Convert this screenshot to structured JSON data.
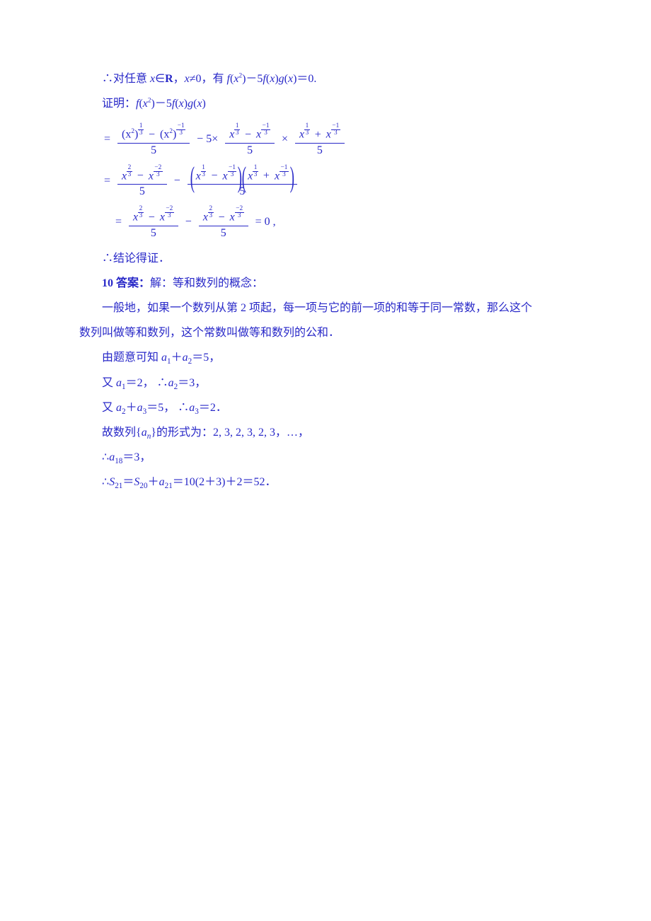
{
  "color_text": "#2828c8",
  "background_color": "#ffffff",
  "body_font": "SimSun",
  "math_font": "Times New Roman",
  "font_size_pt": 12,
  "line1": "∴对任意 ",
  "line1_m1": "x",
  "line1_a": "∈",
  "line1_m2": "R",
  "line1_b": "，",
  "line1_m3": "x",
  "line1_c": "≠0，有 ",
  "line1_m4": "f",
  "line1_d": "(",
  "line1_m5": "x",
  "line1_sup2": "2",
  "line1_e": ")－5",
  "line1_m6": "f",
  "line1_f": "(",
  "line1_m7": "x",
  "line1_g": ")",
  "line1_m8": "g",
  "line1_h": "(",
  "line1_m9": "x",
  "line1_i": ")＝0.",
  "line2": "证明：",
  "line2_m1": "f",
  "line2_a": "(",
  "line2_m2": "x",
  "line2_sup2": "2",
  "line2_b": ")－5",
  "line2_m3": "f",
  "line2_c": "(",
  "line2_m4": "x",
  "line2_d": ")",
  "line2_m5": "g",
  "line2_e": "(",
  "line2_m6": "x",
  "line2_f": ")",
  "eq1_eq": "=",
  "eq1_num_a": "(x",
  "eq1_num_sup2a": "2",
  "eq1_num_b": ")",
  "eq1_exp_13": "1",
  "eq1_exp_13d": "3",
  "eq1_minus": "−",
  "eq1_num_c": "(x",
  "eq1_num_sup2b": "2",
  "eq1_num_d": ")",
  "eq1_exp_n13n": "1",
  "eq1_exp_n13d": "3",
  "eq1_den": "5",
  "eq1_mid": " − 5×",
  "eq1_r1_num_x1": "x",
  "eq1_r1_minus": " − ",
  "eq1_r1_num_x2": "x",
  "eq1_r1_den": "5",
  "eq1_times": "×",
  "eq1_r2_num_x1": "x",
  "eq1_r2_plus": " + ",
  "eq1_r2_num_x2": "x",
  "eq1_r2_den": "5",
  "eq2_eq": "=",
  "eq2_l_x1": "x",
  "eq2_exp_23n": "2",
  "eq2_exp_23d": "3",
  "eq2_l_minus": " − ",
  "eq2_l_x2": "x",
  "eq2_l_den": "5",
  "eq2_mid": " − ",
  "eq2_p1_x1": "x",
  "eq2_p1_minus": " − ",
  "eq2_p1_x2": "x",
  "eq2_p2_x1": "x",
  "eq2_p2_plus": " + ",
  "eq2_p2_x2": "x",
  "eq2_r_den": "5",
  "eq3_eq": "=",
  "eq3_l_x1": "x",
  "eq3_l_minus": " − ",
  "eq3_l_x2": "x",
  "eq3_l_den": "5",
  "eq3_mid": " − ",
  "eq3_r_x1": "x",
  "eq3_r_minus": " − ",
  "eq3_r_x2": "x",
  "eq3_r_den": "5",
  "eq3_tail": " = 0 ,",
  "line_conc": "∴结论得证．",
  "line10_num": "10 答案：",
  "line10_a": "解：等和数列的概念：",
  "line11": "一般地，如果一个数列从第 2 项起，每一项与它的前一项的和等于同一常数，那么这个",
  "line12": "数列叫做等和数列，这个常数叫做等和数列的公和．",
  "line13_a": "由题意可知 ",
  "line13_m_a1": "a",
  "line13_s1": "1",
  "line13_b": "＋",
  "line13_m_a2": "a",
  "line13_s2": "2",
  "line13_c": "＝5，",
  "line14_a": "又 ",
  "line14_m_a1": "a",
  "line14_s1": "1",
  "line14_b": "＝2，  ∴",
  "line14_m_a2": "a",
  "line14_s2": "2",
  "line14_c": "＝3，",
  "line15_a": "又 ",
  "line15_m_a2": "a",
  "line15_s2": "2",
  "line15_b": "＋",
  "line15_m_a3": "a",
  "line15_s3": "3",
  "line15_c": "＝5，  ∴",
  "line15_m_a3b": "a",
  "line15_s3b": "3",
  "line15_d": "＝2．",
  "line16_a": "故数列{",
  "line16_m_an": "a",
  "line16_sn": "n",
  "line16_b": "}的形式为：2, 3, 2, 3, 2, 3，…，",
  "line17_a": "∴",
  "line17_m_a18": "a",
  "line17_s18": "18",
  "line17_b": "＝3，",
  "line18_a": "∴",
  "line18_m_S21": "S",
  "line18_s21": "21",
  "line18_b": "＝",
  "line18_m_S20": "S",
  "line18_s20": "20",
  "line18_c": "＋",
  "line18_m_a21": "a",
  "line18_s21a": "21",
  "line18_d": "＝10(2＋3)＋2＝52．"
}
